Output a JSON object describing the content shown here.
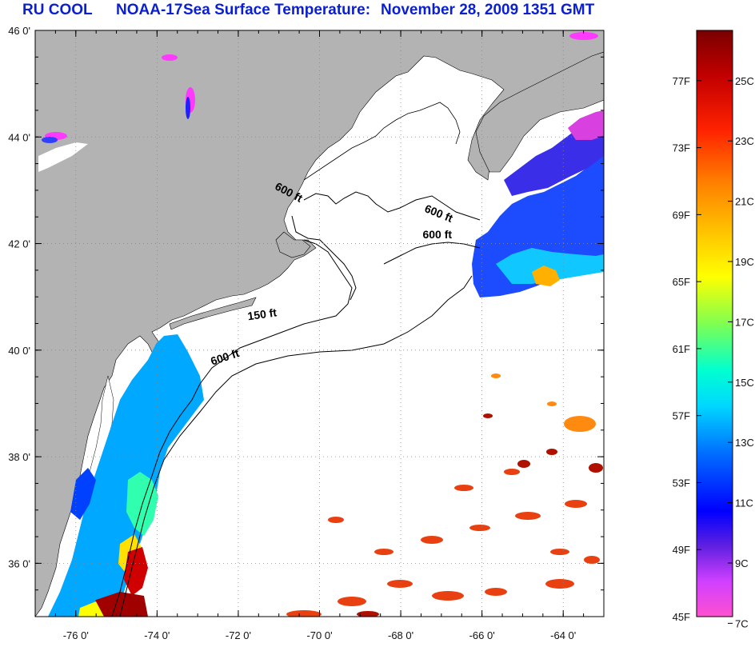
{
  "title": {
    "source": "RU COOL",
    "satellite": "NOAA-17",
    "product": "Sea Surface Temperature:",
    "date": "November 28, 2009 1351 GMT"
  },
  "map": {
    "lon_range": [
      -77,
      -63
    ],
    "lat_range": [
      35,
      46
    ],
    "lon_ticks": [
      {
        "value": -76,
        "label": "-76 0'"
      },
      {
        "value": -74,
        "label": "-74 0'"
      },
      {
        "value": -72,
        "label": "-72 0'"
      },
      {
        "value": -70,
        "label": "-70 0'"
      },
      {
        "value": -68,
        "label": "-68 0'"
      },
      {
        "value": -66,
        "label": "-66 0'"
      },
      {
        "value": -64,
        "label": "-64 0'"
      }
    ],
    "lat_ticks": [
      {
        "value": 46,
        "label": "46 0'"
      },
      {
        "value": 44,
        "label": "44 0'"
      },
      {
        "value": 42,
        "label": "42 0'"
      },
      {
        "value": 40,
        "label": "40 0'"
      },
      {
        "value": 38,
        "label": "38 0'"
      },
      {
        "value": 36,
        "label": "36 0'"
      }
    ],
    "grid": "dotted",
    "land_color": "#b3b3b3",
    "no_data_color": "#ffffff",
    "contour_labels": [
      {
        "text": "600 ft",
        "lon": -70.8,
        "lat": 42.9,
        "rotate": 28
      },
      {
        "text": "600 ft",
        "lon": -67.1,
        "lat": 42.5,
        "rotate": 22
      },
      {
        "text": "600 ft",
        "lon": -67.1,
        "lat": 42.1,
        "rotate": 0
      },
      {
        "text": "150 ft",
        "lon": -71.4,
        "lat": 40.6,
        "rotate": -8
      },
      {
        "text": "600 ft",
        "lon": -72.3,
        "lat": 39.8,
        "rotate": -18
      }
    ]
  },
  "colorbar": {
    "fahrenheit_labels": [
      "77F",
      "73F",
      "69F",
      "65F",
      "61F",
      "57F",
      "53F",
      "49F",
      "45F"
    ],
    "celsius_labels": [
      "25C",
      "23C",
      "21C",
      "19C",
      "17C",
      "15C",
      "13C",
      "11C",
      "9C",
      "7C"
    ],
    "colors_top_to_bottom": [
      "#7a0000",
      "#c00000",
      "#ff2000",
      "#ff7a00",
      "#ffc000",
      "#ffff00",
      "#a0ff40",
      "#30ff90",
      "#00ffff",
      "#00b0ff",
      "#0050ff",
      "#0000ff",
      "#8030e0",
      "#ff40ff"
    ]
  }
}
